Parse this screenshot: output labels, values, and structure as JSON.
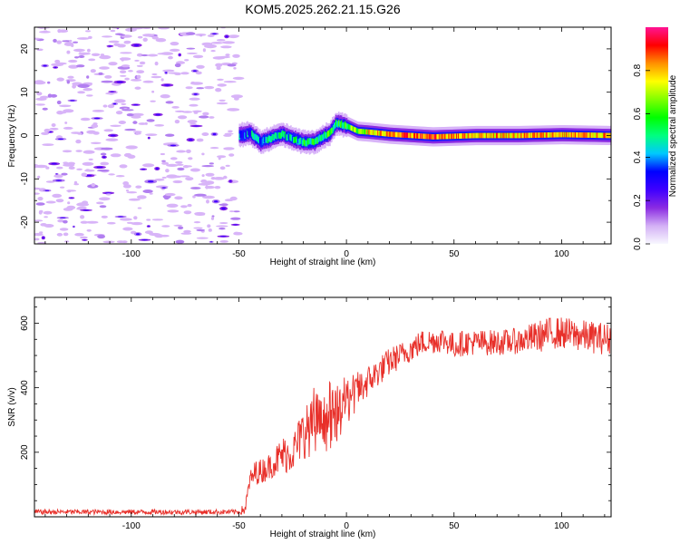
{
  "title": "KOM5.2025.262.21.15.G26",
  "colors": {
    "snr_line": "#e8302a",
    "gradient": [
      "#f8f8ff",
      "#d3b0f5",
      "#8a2be2",
      "#3f00ff",
      "#0000ff",
      "#00c8ff",
      "#00ff80",
      "#00ff00",
      "#80ff00",
      "#ffff00",
      "#ff9000",
      "#ff0000",
      "#ff1493"
    ]
  },
  "chart_data": [
    {
      "type": "heatmap",
      "name": "spectrogram",
      "xlabel": "Height of straight line (km)",
      "ylabel": "Frequency (Hz)",
      "xlim": [
        -145,
        123
      ],
      "ylim": [
        -25,
        25
      ],
      "xticks": [
        -100,
        -50,
        0,
        50,
        100
      ],
      "yticks": [
        -20,
        -10,
        0,
        10,
        20
      ],
      "noise_region_end_km": -50,
      "ridge": {
        "x": [
          -50,
          -45,
          -40,
          -35,
          -30,
          -25,
          -20,
          -15,
          -12,
          -8,
          -5,
          -3,
          0,
          5,
          10,
          20,
          30,
          40,
          60,
          80,
          100,
          123
        ],
        "freq": [
          0,
          0.5,
          -1.5,
          -0.5,
          0.3,
          -0.8,
          -1.5,
          -1.5,
          -0.5,
          0.5,
          2.8,
          2.6,
          2.2,
          1.0,
          0.8,
          0.3,
          0.0,
          -0.3,
          0.0,
          0.0,
          0.2,
          0.0
        ],
        "amplitude": [
          0.35,
          0.4,
          0.45,
          0.45,
          0.5,
          0.45,
          0.5,
          0.55,
          0.5,
          0.6,
          0.5,
          0.55,
          0.6,
          0.65,
          0.75,
          0.8,
          0.85,
          0.85,
          0.8,
          0.8,
          0.8,
          0.8
        ]
      },
      "colorbar": {
        "label": "Normalized spectral amplitude",
        "range": [
          0,
          1
        ],
        "ticks": [
          "0.0",
          "0.2",
          "0.4",
          "0.6",
          "0.8"
        ]
      }
    },
    {
      "type": "line",
      "name": "snr",
      "xlabel": "Height of straight line (km)",
      "ylabel": "SNR (v/v)",
      "xlim": [
        -145,
        123
      ],
      "ylim": [
        0,
        680
      ],
      "xticks": [
        -100,
        -50,
        0,
        50,
        100
      ],
      "yticks": [
        200,
        400,
        600
      ],
      "series": [
        {
          "name": "SNR",
          "x": [
            -145,
            -120,
            -100,
            -80,
            -60,
            -50,
            -47,
            -45,
            -42,
            -40,
            -35,
            -30,
            -25,
            -20,
            -15,
            -10,
            -5,
            0,
            5,
            10,
            15,
            20,
            25,
            30,
            35,
            40,
            45,
            50,
            55,
            60,
            70,
            80,
            90,
            95,
            100,
            110,
            123
          ],
          "y": [
            15,
            15,
            15,
            15,
            15,
            15,
            25,
            110,
            140,
            140,
            160,
            190,
            200,
            260,
            280,
            290,
            310,
            360,
            390,
            420,
            450,
            480,
            500,
            520,
            540,
            545,
            550,
            530,
            540,
            540,
            540,
            545,
            560,
            570,
            570,
            560,
            550
          ],
          "noise": [
            8,
            8,
            8,
            8,
            8,
            8,
            20,
            30,
            40,
            40,
            40,
            60,
            60,
            80,
            90,
            90,
            90,
            80,
            60,
            50,
            45,
            45,
            40,
            40,
            40,
            40,
            40,
            40,
            40,
            40,
            40,
            40,
            50,
            50,
            50,
            50,
            50
          ]
        }
      ]
    }
  ]
}
